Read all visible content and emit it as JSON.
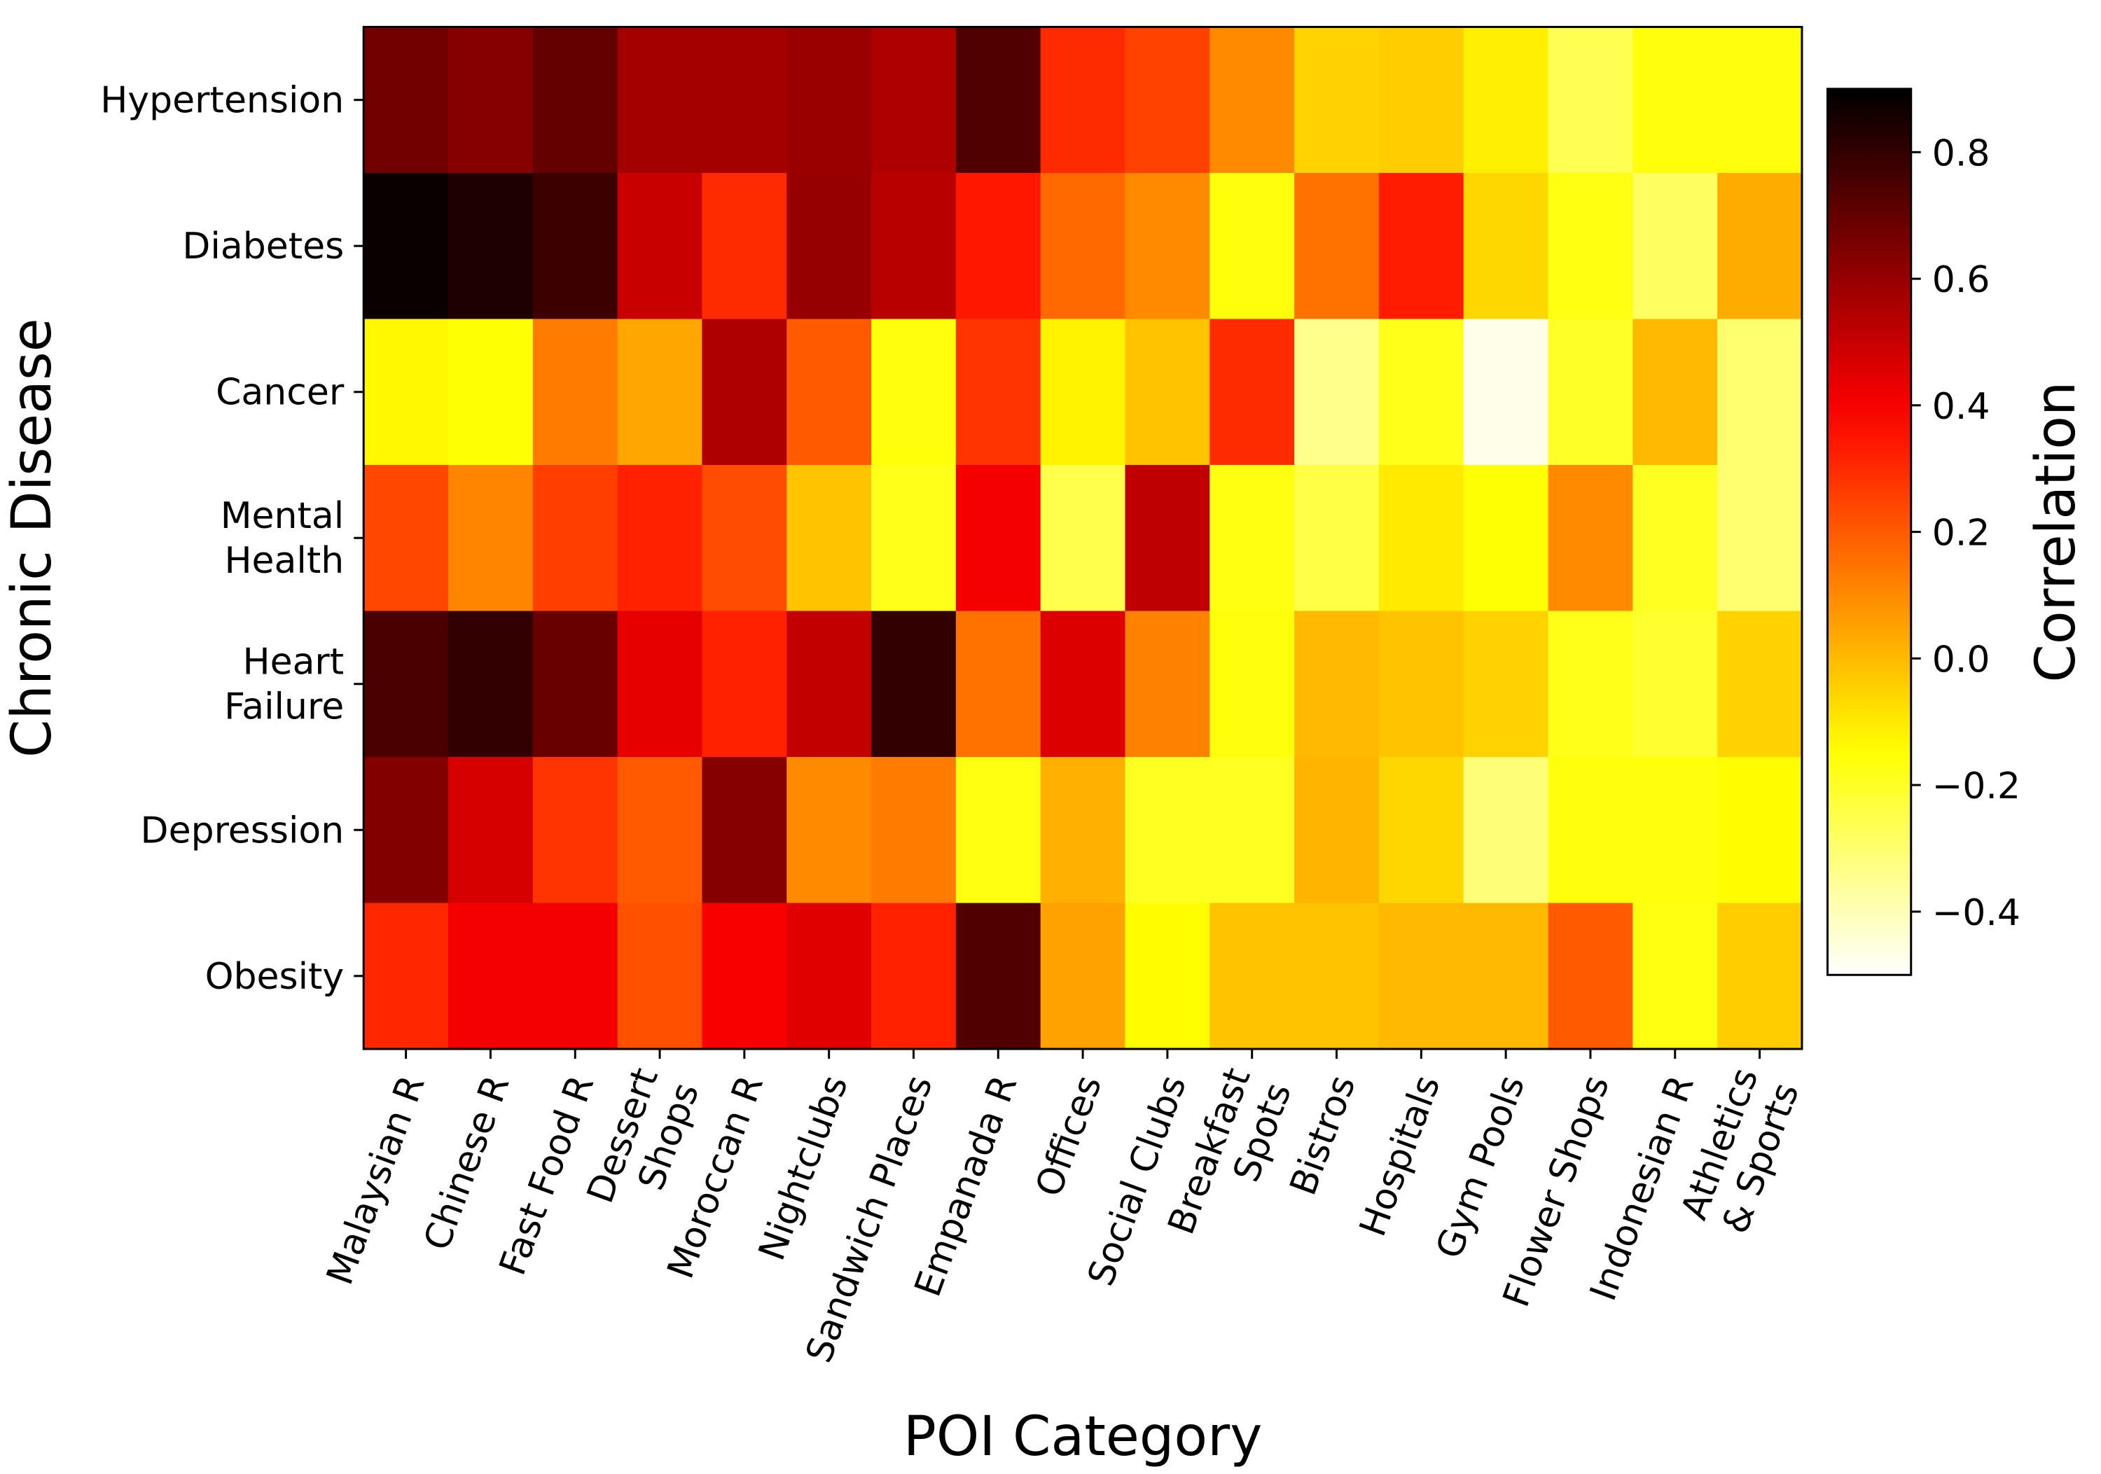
{
  "chart_data": {
    "type": "heatmap",
    "xlabel": "POI Category",
    "ylabel": "Chronic Disease",
    "colorbar_label": "Correlation",
    "colormap": "hot_r",
    "vmin": -0.5,
    "vmax": 0.9,
    "colorbar_ticks": [
      "0.8",
      "0.6",
      "0.4",
      "0.2",
      "0.0",
      "−0.2",
      "−0.4"
    ],
    "colorbar_tick_values": [
      0.8,
      0.6,
      0.4,
      0.2,
      0.0,
      -0.2,
      -0.4
    ],
    "rows": [
      [
        "Hypertension"
      ],
      [
        "Diabetes"
      ],
      [
        "Cancer"
      ],
      [
        "Mental",
        "Health"
      ],
      [
        "Heart",
        "Failure"
      ],
      [
        "Depression"
      ],
      [
        "Obesity"
      ]
    ],
    "columns": [
      [
        "Malaysian R"
      ],
      [
        "Chinese R"
      ],
      [
        "Fast Food R"
      ],
      [
        "Dessert",
        "Shops"
      ],
      [
        "Moroccan R"
      ],
      [
        "Nightclubs"
      ],
      [
        "Sandwich Places"
      ],
      [
        "Empanada R"
      ],
      [
        "Offices"
      ],
      [
        "Social Clubs"
      ],
      [
        "Breakfast",
        "Spots"
      ],
      [
        "Bistros"
      ],
      [
        "Hospitals"
      ],
      [
        "Gym Pools"
      ],
      [
        "Flower Shops"
      ],
      [
        "Indonesian R"
      ],
      [
        "Athletics",
        "& Sports"
      ]
    ],
    "values": [
      [
        0.67,
        0.63,
        0.7,
        0.57,
        0.57,
        0.59,
        0.55,
        0.74,
        0.3,
        0.25,
        0.1,
        -0.05,
        -0.04,
        -0.11,
        -0.26,
        -0.16,
        -0.16
      ],
      [
        0.88,
        0.84,
        0.78,
        0.5,
        0.3,
        0.6,
        0.53,
        0.34,
        0.17,
        0.1,
        -0.16,
        0.15,
        0.33,
        -0.06,
        -0.17,
        -0.28,
        0.03
      ],
      [
        -0.13,
        -0.15,
        0.13,
        0.04,
        0.55,
        0.2,
        -0.16,
        0.28,
        -0.12,
        -0.02,
        0.3,
        -0.34,
        -0.18,
        -0.47,
        -0.2,
        0.0,
        -0.3
      ],
      [
        0.24,
        0.11,
        0.26,
        0.32,
        0.23,
        -0.02,
        -0.18,
        0.41,
        -0.25,
        0.52,
        -0.17,
        -0.24,
        -0.1,
        -0.15,
        0.1,
        -0.19,
        -0.3
      ],
      [
        0.75,
        0.8,
        0.69,
        0.44,
        0.32,
        0.51,
        0.8,
        0.15,
        0.46,
        0.12,
        -0.16,
        0.0,
        -0.02,
        -0.05,
        -0.18,
        -0.21,
        -0.05
      ],
      [
        0.64,
        0.47,
        0.28,
        0.2,
        0.63,
        0.1,
        0.13,
        -0.17,
        0.02,
        -0.19,
        -0.19,
        0.01,
        -0.06,
        -0.31,
        -0.16,
        -0.16,
        -0.14
      ],
      [
        0.31,
        0.41,
        0.41,
        0.22,
        0.4,
        0.45,
        0.32,
        0.74,
        0.05,
        -0.14,
        -0.02,
        -0.02,
        0.0,
        0.0,
        0.2,
        -0.17,
        -0.04
      ]
    ]
  }
}
